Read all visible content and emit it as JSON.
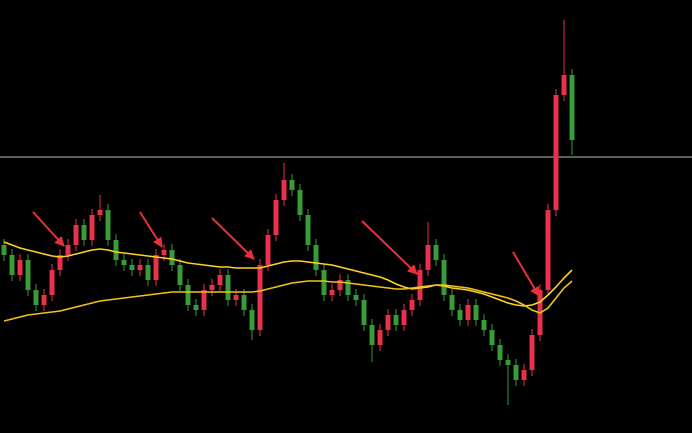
{
  "chart_data": {
    "type": "candlestick",
    "ylim": [
      0,
      433
    ],
    "up_color": "#e8314a",
    "down_color": "#3a9a3a",
    "open": [
      188,
      178,
      158,
      173,
      143,
      128,
      138,
      163,
      178,
      188,
      208,
      193,
      218,
      223,
      193,
      173,
      168,
      163,
      168,
      153,
      178,
      183,
      168,
      148,
      128,
      123,
      143,
      148,
      158,
      133,
      138,
      123,
      103,
      168,
      198,
      233,
      253,
      243,
      218,
      188,
      163,
      138,
      143,
      153,
      138,
      133,
      108,
      88,
      103,
      118,
      108,
      123,
      133,
      163,
      188,
      173,
      138,
      123,
      113,
      128,
      113,
      103,
      88,
      73,
      68,
      53,
      63,
      98,
      143,
      223,
      338,
      358
    ],
    "high": [
      194,
      184,
      179,
      179,
      149,
      144,
      169,
      184,
      194,
      214,
      214,
      224,
      238,
      229,
      199,
      179,
      174,
      174,
      174,
      184,
      189,
      189,
      174,
      154,
      134,
      149,
      154,
      164,
      164,
      144,
      144,
      129,
      174,
      204,
      239,
      270,
      259,
      249,
      224,
      194,
      169,
      149,
      159,
      159,
      144,
      139,
      114,
      109,
      124,
      124,
      129,
      139,
      169,
      211,
      194,
      179,
      144,
      129,
      134,
      134,
      119,
      109,
      94,
      79,
      74,
      69,
      104,
      149,
      229,
      344,
      413,
      364
    ],
    "low": [
      172,
      152,
      152,
      137,
      122,
      122,
      132,
      157,
      172,
      182,
      187,
      187,
      212,
      187,
      167,
      162,
      157,
      157,
      147,
      147,
      172,
      162,
      142,
      122,
      117,
      117,
      137,
      142,
      127,
      127,
      117,
      93,
      97,
      162,
      192,
      227,
      237,
      212,
      182,
      157,
      132,
      132,
      137,
      132,
      127,
      102,
      71,
      82,
      97,
      102,
      102,
      117,
      127,
      157,
      167,
      132,
      117,
      107,
      107,
      107,
      97,
      82,
      67,
      28,
      47,
      47,
      57,
      92,
      137,
      217,
      332,
      278
    ],
    "close": [
      178,
      158,
      173,
      143,
      128,
      138,
      163,
      178,
      188,
      208,
      193,
      218,
      223,
      193,
      173,
      168,
      163,
      168,
      153,
      178,
      183,
      168,
      148,
      128,
      123,
      143,
      148,
      158,
      133,
      138,
      123,
      103,
      168,
      198,
      233,
      253,
      243,
      218,
      188,
      163,
      138,
      143,
      153,
      138,
      133,
      108,
      88,
      103,
      118,
      108,
      123,
      133,
      163,
      188,
      173,
      138,
      123,
      113,
      128,
      113,
      103,
      88,
      73,
      68,
      53,
      63,
      98,
      143,
      223,
      338,
      358,
      293
    ],
    "lines": [
      {
        "color": "#ffd21f",
        "values": [
          191,
          188,
          185,
          183,
          181,
          179,
          177,
          176,
          177,
          179,
          181,
          183,
          184,
          183,
          181,
          180,
          179,
          178,
          177,
          176,
          175,
          174,
          172,
          170,
          169,
          168,
          167,
          166,
          166,
          165,
          165,
          165,
          165,
          167,
          169,
          171,
          172,
          172,
          171,
          170,
          169,
          168,
          166,
          164,
          162,
          160,
          158,
          156,
          153,
          149,
          146,
          144,
          145,
          146,
          148,
          147,
          145,
          144,
          143,
          141,
          139,
          136,
          133,
          130,
          128,
          127,
          128,
          131,
          138,
          146,
          155,
          163
        ]
      },
      {
        "color": "#f0c419",
        "values": [
          112,
          114,
          116,
          118,
          119,
          120,
          121,
          122,
          124,
          126,
          128,
          130,
          132,
          133,
          134,
          135,
          136,
          137,
          138,
          139,
          140,
          141,
          141,
          141,
          141,
          141,
          141,
          141,
          141,
          141,
          141,
          141,
          142,
          144,
          146,
          148,
          150,
          151,
          152,
          152,
          152,
          151,
          151,
          150,
          149,
          148,
          147,
          146,
          145,
          144,
          144,
          145,
          146,
          147,
          148,
          148,
          147,
          146,
          145,
          143,
          141,
          139,
          137,
          135,
          132,
          128,
          123,
          120,
          125,
          135,
          145,
          152
        ]
      }
    ],
    "hline": {
      "value": 276,
      "color": "#bdbdbd"
    }
  }
}
